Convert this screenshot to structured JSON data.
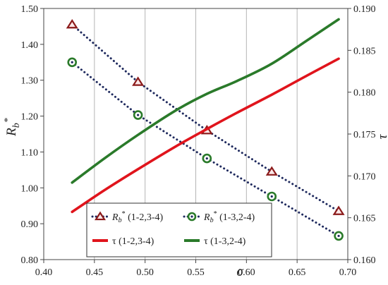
{
  "chart_data": {
    "type": "line",
    "xlabel": "σ",
    "ylabel_left": "R_b*",
    "ylabel_right": "τ",
    "xlim": [
      0.4,
      0.7
    ],
    "ylim_left": [
      0.8,
      1.5
    ],
    "ylim_right": [
      0.16,
      0.19
    ],
    "grid": "vertical",
    "x_ticks": [
      "0.40",
      "0.45",
      "0.50",
      "0.55",
      "0.60",
      "0.65",
      "0.70"
    ],
    "y_ticks_left": [
      "0.80",
      "0.90",
      "1.00",
      "1.10",
      "1.20",
      "1.30",
      "1.40",
      "1.50"
    ],
    "y_ticks_right": [
      "0.160",
      "0.165",
      "0.170",
      "0.175",
      "0.180",
      "0.185",
      "0.190"
    ],
    "legend_position": "bottom-center",
    "series": [
      {
        "name": "R_b* (1-2,3-4)",
        "label_parts": {
          "sym": "R",
          "sub": "b",
          "sup": "*",
          "suffix": " (1-2,3-4)"
        },
        "axis": "left",
        "style": "dotted-marker-triangle",
        "line_color": "#1f2a5e",
        "marker_color": "#8b1a1a",
        "x": [
          0.428,
          0.493,
          0.561,
          0.625,
          0.691
        ],
        "y": [
          1.455,
          1.295,
          1.16,
          1.045,
          0.935
        ]
      },
      {
        "name": "R_b* (1-3,2-4)",
        "label_parts": {
          "sym": "R",
          "sub": "b",
          "sup": "*",
          "suffix": " (1-3,2-4)"
        },
        "axis": "left",
        "style": "dotted-marker-circle",
        "line_color": "#1f2a5e",
        "marker_color": "#2a7a2a",
        "x": [
          0.428,
          0.493,
          0.561,
          0.625,
          0.691
        ],
        "y": [
          1.35,
          1.203,
          1.082,
          0.976,
          0.866
        ]
      },
      {
        "name": "τ (1-2,3-4)",
        "axis": "right",
        "style": "solid",
        "line_color": "#e0141c",
        "x": [
          0.428,
          0.46,
          0.493,
          0.53,
          0.561,
          0.59,
          0.625,
          0.66,
          0.691
        ],
        "y": [
          0.1657,
          0.1683,
          0.1708,
          0.1735,
          0.1756,
          0.1775,
          0.1797,
          0.182,
          0.184
        ]
      },
      {
        "name": "τ (1-3,2-4)",
        "axis": "right",
        "style": "solid",
        "line_color": "#2a7a2a",
        "x": [
          0.428,
          0.46,
          0.493,
          0.53,
          0.561,
          0.59,
          0.625,
          0.66,
          0.691
        ],
        "y": [
          0.1692,
          0.1721,
          0.1749,
          0.1778,
          0.1798,
          0.1813,
          0.1834,
          0.1862,
          0.1887
        ]
      }
    ]
  }
}
